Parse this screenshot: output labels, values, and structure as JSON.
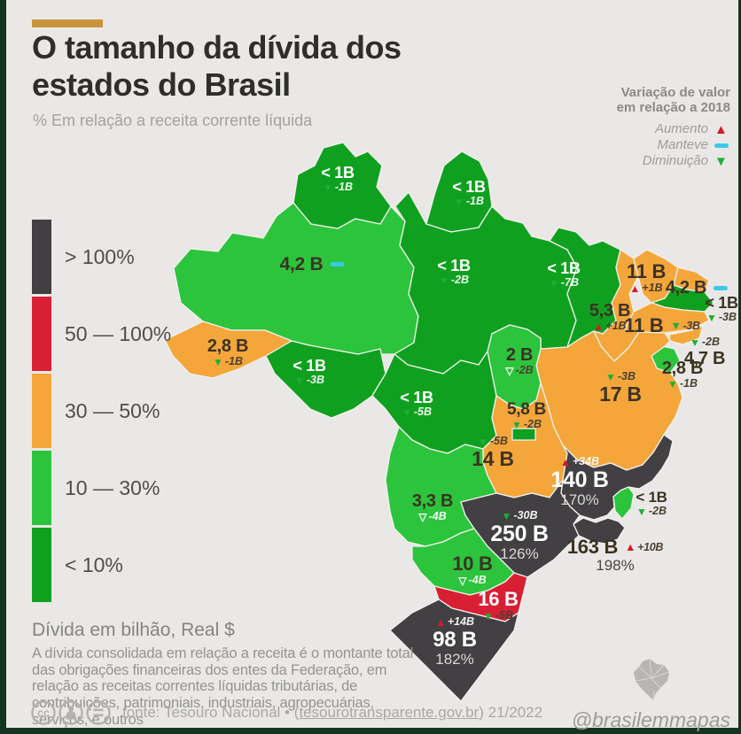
{
  "header": {
    "title_line1": "O tamanho da dívida dos",
    "title_line2": "estados do Brasil",
    "subtitle": "% Em relação a receita corrente líquida",
    "accent_color": "#c9953c"
  },
  "variation_legend": {
    "title_line1": "Variação de valor",
    "title_line2": "em relação a 2018",
    "items": [
      {
        "label": "Aumento",
        "symbol": "up-triangle-icon",
        "color": "#d7182b"
      },
      {
        "label": "Manteve",
        "symbol": "cyan-dash-icon",
        "color": "#3bc8e9"
      },
      {
        "label": "Diminuição",
        "symbol": "down-triangle-icon",
        "color": "#1daf35"
      }
    ]
  },
  "scale_legend": {
    "items": [
      {
        "label": "> 100%",
        "color": "#413f41"
      },
      {
        "label": "50 — 100%",
        "color": "#d91f33"
      },
      {
        "label": "30 — 50%",
        "color": "#f4a63a"
      },
      {
        "label": "10 — 30%",
        "color": "#2cc43c"
      },
      {
        "label": "< 10%",
        "color": "#10a01f"
      }
    ]
  },
  "map": {
    "palette": {
      "gt100": "#424043",
      "50-100": "#d91f33",
      "30-50": "#f4a63a",
      "10-30": "#2cc43c",
      "lt10": "#10a01f"
    },
    "marker_colors": {
      "up": "#d7182b",
      "down": "#1daf35",
      "same": "#3bc8e9"
    },
    "states": [
      {
        "id": "RR",
        "value": "< 1B",
        "change": "-1B",
        "direction": "down",
        "category": "lt10"
      },
      {
        "id": "AP",
        "value": "< 1B",
        "change": "-1B",
        "direction": "down",
        "category": "lt10"
      },
      {
        "id": "AM",
        "value": "4,2 B",
        "change": "",
        "direction": "same",
        "category": "10-30"
      },
      {
        "id": "PA",
        "value": "< 1B",
        "change": "-2B",
        "direction": "down",
        "category": "lt10"
      },
      {
        "id": "MA",
        "value": "< 1B",
        "change": "-7B",
        "direction": "down",
        "category": "lt10"
      },
      {
        "id": "AC",
        "value": "2,8 B",
        "change": "-1B",
        "direction": "down",
        "category": "30-50"
      },
      {
        "id": "RO",
        "value": "< 1B",
        "change": "-3B",
        "direction": "down",
        "category": "lt10"
      },
      {
        "id": "MT",
        "value": "< 1B",
        "change": "-5B",
        "direction": "down",
        "category": "lt10"
      },
      {
        "id": "TO",
        "value": "2 B",
        "change": "-2B",
        "direction": "down",
        "category": "10-30"
      },
      {
        "id": "PI",
        "value": "5,3 B",
        "change": "+1B",
        "direction": "up",
        "category": "30-50"
      },
      {
        "id": "CE",
        "value": "11 B",
        "change": "+1B",
        "direction": "up",
        "category": "30-50"
      },
      {
        "id": "RN",
        "value": "4,2 B",
        "change": "",
        "direction": "same",
        "category": "30-50"
      },
      {
        "id": "PB",
        "value": "< 1B",
        "change": "-3B",
        "direction": "down",
        "category": "lt10"
      },
      {
        "id": "PE",
        "value": "11 B",
        "change": "-3B",
        "direction": "down",
        "category": "30-50"
      },
      {
        "id": "AL",
        "value": "4,7 B",
        "change": "-2B",
        "direction": "down",
        "category": "30-50"
      },
      {
        "id": "SE",
        "value": "2,8 B",
        "change": "-1B",
        "direction": "down",
        "category": "10-30"
      },
      {
        "id": "BA",
        "value": "17 B",
        "change": "-3B",
        "direction": "down",
        "category": "30-50"
      },
      {
        "id": "DF",
        "value": "5,8 B",
        "change": "-2B",
        "direction": "down",
        "category": "lt10"
      },
      {
        "id": "GO",
        "value": "14 B",
        "change": "-5B",
        "direction": "down",
        "category": "30-50"
      },
      {
        "id": "MG",
        "value": "140 B",
        "pct": "170%",
        "change": "+34B",
        "direction": "up",
        "category": "gt100"
      },
      {
        "id": "MS",
        "value": "3,3 B",
        "change": "-4B",
        "direction": "down",
        "category": "10-30"
      },
      {
        "id": "SP",
        "value": "250 B",
        "pct": "126%",
        "change": "-30B",
        "direction": "down",
        "category": "gt100"
      },
      {
        "id": "ES",
        "value": "< 1B",
        "change": "-2B",
        "direction": "down",
        "category": "10-30"
      },
      {
        "id": "RJ",
        "value": "163 B",
        "pct": "198%",
        "change": "+10B",
        "direction": "up",
        "category": "gt100"
      },
      {
        "id": "PR",
        "value": "10 B",
        "change": "-4B",
        "direction": "down",
        "category": "10-30"
      },
      {
        "id": "SC",
        "value": "16 B",
        "change": "-5B",
        "direction": "down",
        "category": "50-100"
      },
      {
        "id": "RS",
        "value": "98 B",
        "pct": "182%",
        "change": "+14B",
        "direction": "up",
        "category": "gt100"
      }
    ]
  },
  "notes": {
    "unit_label": "Dívida em bilhão, Real $",
    "description": "A dívida consolidada em relação a receita é o montante total das obrigações financeiras dos entes da Federação, em relação as receitas correntes líquidas tributárias, de contribuições, patrimoniais, industriais, agropecuárias, serviços, e outros"
  },
  "footer": {
    "license_icons": [
      "cc-icon",
      "by-person-icon",
      "equals-icon"
    ],
    "source_prefix": "fonte: Tesouro Nacional • (",
    "source_link": "tesourotransparente.gov.br",
    "source_suffix": ") 21/2022",
    "credit": "@brasilemmapas"
  }
}
